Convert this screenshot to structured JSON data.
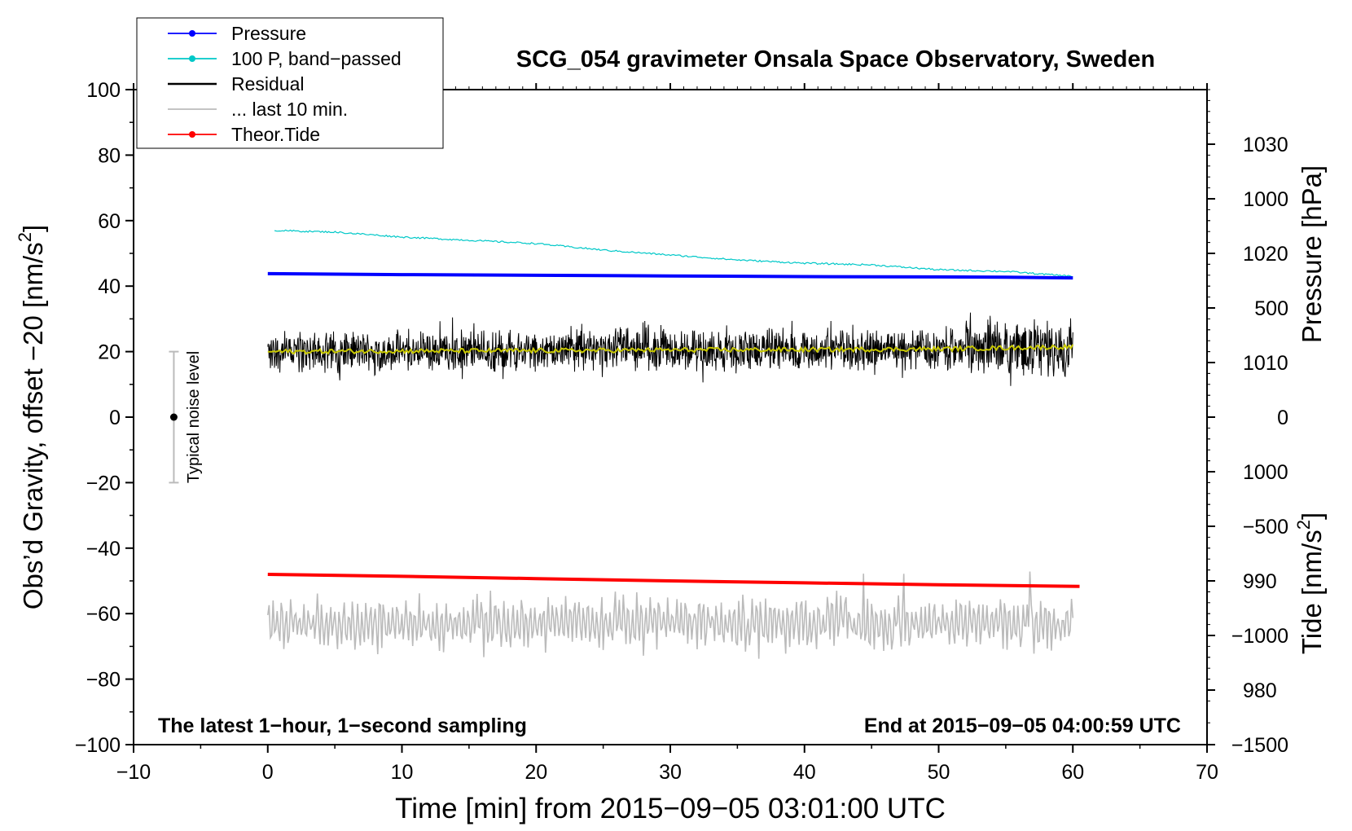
{
  "chart_data": {
    "type": "line",
    "title": "SCG_054 gravimeter Onsala Space Observatory, Sweden",
    "xlabel": "Time [min] from 2015−09−05 03:01:00 UTC",
    "ylabel_left": "Obs’d Gravity, offset −20 [nm/s",
    "ylabel_left_sup": "2",
    "ylabel_left_end": "]",
    "ylabel_right_pressure": "Pressure [hPa]",
    "ylabel_right_tide": "Tide [nm/s",
    "ylabel_right_tide_sup": "2",
    "ylabel_right_tide_end": "]",
    "xlim": [
      -10,
      70
    ],
    "ylim_left": [
      -100,
      100
    ],
    "pressure_lim": [
      975,
      1035
    ],
    "tide_lim": [
      -1500,
      1500
    ],
    "xticks": [
      -10,
      0,
      10,
      20,
      30,
      40,
      50,
      60,
      70
    ],
    "xtick_labels": [
      "−10",
      "0",
      "10",
      "20",
      "30",
      "40",
      "50",
      "60",
      "70"
    ],
    "yticks_left": [
      -100,
      -80,
      -60,
      -40,
      -20,
      0,
      20,
      40,
      60,
      80,
      100
    ],
    "ytick_labels_left": [
      "−100",
      "−80",
      "−60",
      "−40",
      "−20",
      "0",
      "20",
      "40",
      "60",
      "80",
      "100"
    ],
    "pressure_ticks": [
      980,
      990,
      1000,
      1010,
      1020,
      1030
    ],
    "pressure_tick_labels": [
      "980",
      "990",
      "1000",
      "1010",
      "1020",
      "1030"
    ],
    "tide_ticks": [
      -1500,
      -1000,
      -500,
      0,
      500,
      1000
    ],
    "tide_tick_labels": [
      "−1500",
      "−1000",
      "−500",
      "0",
      "500",
      "1000"
    ],
    "annotation_left": "The latest 1−hour, 1−second sampling",
    "annotation_right": "End at 2015−09−05 04:00:59 UTC",
    "noise_bar": {
      "label": "Typical noise level",
      "x": -7,
      "center": 0,
      "low": -20,
      "high": 20
    },
    "legend": [
      {
        "name": "Pressure",
        "color": "#0000ff",
        "marker": true
      },
      {
        "name": "100 P, band−passed",
        "color": "#00c8c8",
        "marker": true
      },
      {
        "name": "Residual",
        "color": "#000000",
        "marker": false
      },
      {
        "name": "... last 10 min.",
        "color": "#bbbbbb",
        "marker": false
      },
      {
        "name": "Theor.Tide",
        "color": "#ff0000",
        "marker": true
      }
    ],
    "series": [
      {
        "name": "Pressure",
        "axis": "left",
        "color": "#0000ff",
        "x": [
          0,
          10,
          20,
          30,
          40,
          50,
          55,
          60
        ],
        "y": [
          43.8,
          43.5,
          43.3,
          43.1,
          42.9,
          42.8,
          42.7,
          42.5
        ]
      },
      {
        "name": "100 P, band−passed",
        "axis": "left",
        "color": "#00c8c8",
        "x": [
          0.5,
          5,
          10,
          15,
          20,
          25,
          30,
          35,
          40,
          45,
          50,
          55,
          60
        ],
        "y": [
          57,
          56.5,
          55,
          54,
          53,
          51,
          49.5,
          48,
          47,
          46.5,
          45,
          44.5,
          43
        ]
      },
      {
        "name": "Residual",
        "axis": "left",
        "color": "#000000",
        "x": [
          0,
          60
        ],
        "y_mean": [
          20,
          21
        ],
        "y_range": [
          7,
          35
        ]
      },
      {
        "name": "... last 10 min.",
        "axis": "left",
        "color": "#bbbbbb",
        "x": [
          0,
          60
        ],
        "y_mean": [
          -63,
          -63
        ],
        "y_range": [
          -76,
          -47
        ]
      },
      {
        "name": "Theor.Tide",
        "axis": "left",
        "color": "#ff0000",
        "x": [
          0,
          10,
          20,
          30,
          40,
          50,
          60.5
        ],
        "y": [
          -48,
          -48.6,
          -49.3,
          -50,
          -50.6,
          -51.2,
          -51.7
        ]
      },
      {
        "name": "smoothed residual",
        "axis": "left",
        "color": "#c8c800",
        "x": [
          0,
          10,
          20,
          30,
          40,
          50,
          60
        ],
        "y": [
          20,
          20.2,
          20.3,
          20.5,
          20.6,
          20.8,
          21.5
        ]
      }
    ]
  }
}
